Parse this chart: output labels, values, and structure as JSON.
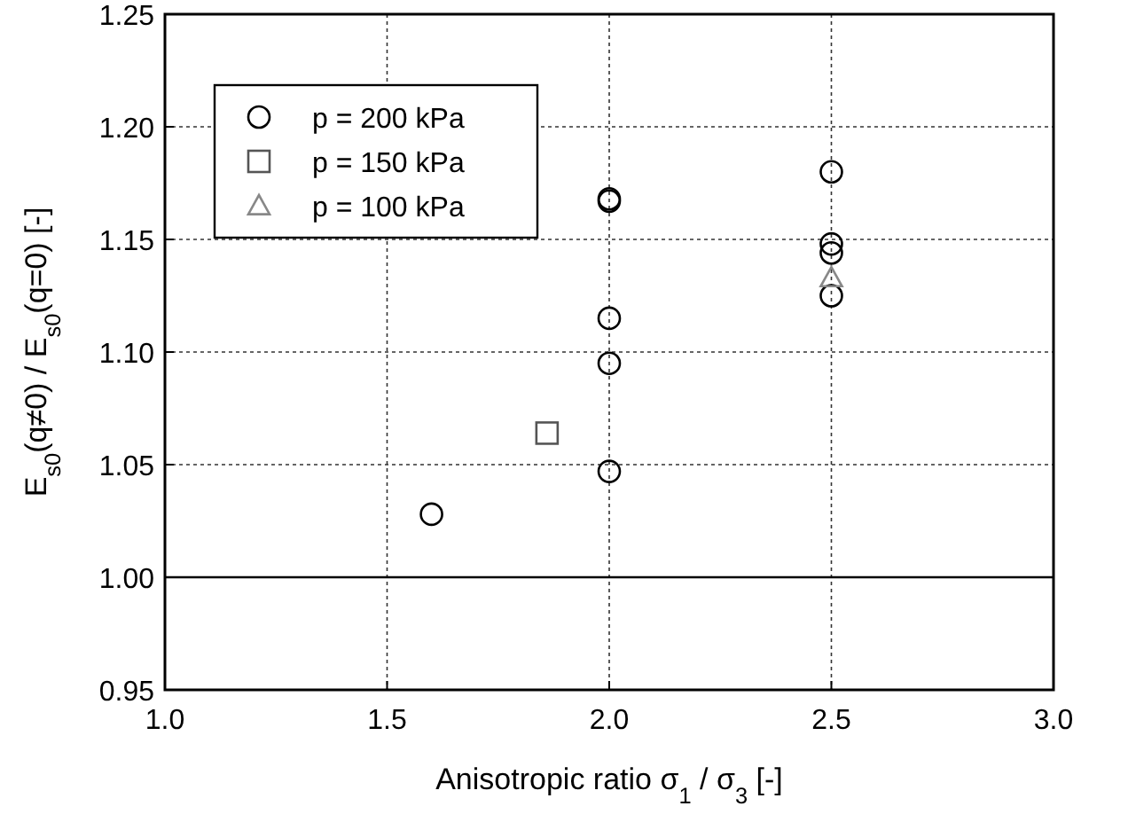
{
  "chart_data": {
    "type": "scatter",
    "xlabel": "Anisotropic ratio σ$_{1}$ / σ$_{3}$ [-]",
    "ylabel": "E$_{s0}$(q≠0) / E$_{s0}$(q=0) [-]",
    "xlim": [
      1.0,
      3.0
    ],
    "xticks": [
      {
        "value": 1,
        "label": "1.0"
      },
      1.5,
      {
        "value": 2,
        "label": "2.0"
      },
      2.5,
      {
        "value": 3,
        "label": "3.0"
      }
    ],
    "ylim": [
      0.95,
      1.25
    ],
    "yticks": [
      0.95,
      {
        "value": 1,
        "label": "1.00"
      },
      1.05,
      {
        "value": 1.1,
        "label": "1.10"
      },
      1.15,
      {
        "value": 1.2,
        "label": "1.20"
      },
      1.25
    ],
    "grid": true,
    "legend": "top left",
    "ref_lines": [
      {
        "axis": "y",
        "value": 1.0,
        "color": "#000000",
        "line_style": "solid"
      }
    ],
    "series": [
      {
        "name": "p = 200 kPa",
        "color": "#000000",
        "marker": "circle",
        "x": [
          1.6,
          2.0,
          2.0,
          2.0,
          2.0,
          2.0,
          2.5,
          2.5,
          2.5,
          2.5
        ],
        "values": [
          1.028,
          1.168,
          1.167,
          1.115,
          1.095,
          1.047,
          1.18,
          1.148,
          1.144,
          1.125
        ]
      },
      {
        "name": "p = 150 kPa",
        "color": "#555555",
        "marker": "square",
        "x": [
          1.86
        ],
        "values": [
          1.064
        ]
      },
      {
        "name": "p = 100 kPa",
        "color": "#888888",
        "marker": "triangle",
        "x": [
          2.5
        ],
        "values": [
          1.133
        ]
      }
    ]
  }
}
